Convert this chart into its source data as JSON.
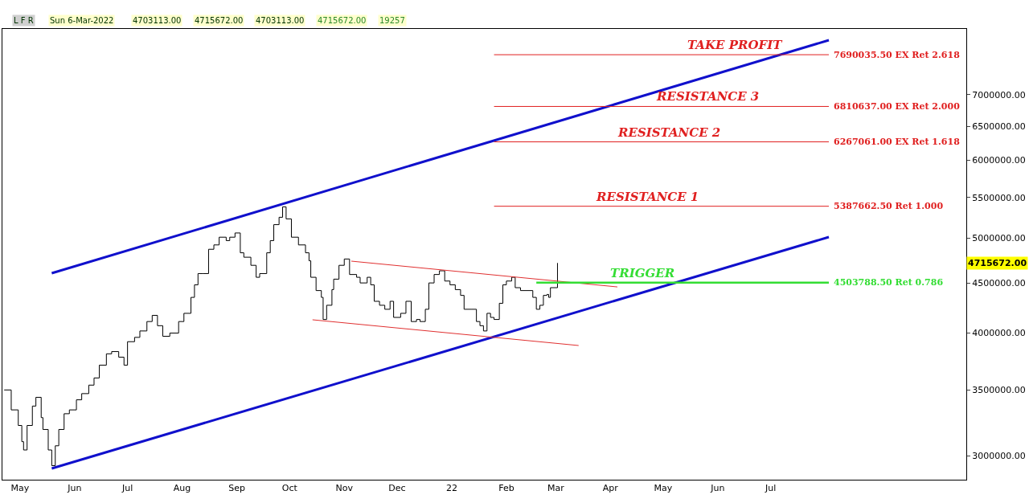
{
  "chart_data": {
    "type": "line",
    "log": "y",
    "legend": false,
    "marker": "none",
    "xlim": [
      "2021-04-25",
      "2022-10-24"
    ],
    "xticks": [
      {
        "value": "2021-05-05",
        "label": "May"
      },
      {
        "value": "2021-06-05",
        "label": "Jun"
      },
      {
        "value": "2021-07-05",
        "label": "Jul"
      },
      {
        "value": "2021-08-05",
        "label": "Aug"
      },
      {
        "value": "2021-09-05",
        "label": "Sep"
      },
      {
        "value": "2021-10-05",
        "label": "Oct"
      },
      {
        "value": "2021-11-05",
        "label": "Nov"
      },
      {
        "value": "2021-12-05",
        "label": "Dec"
      },
      {
        "value": "2022-01-05",
        "label": "22"
      },
      {
        "value": "2022-02-05",
        "label": "Feb"
      },
      {
        "value": "2022-03-05",
        "label": "Mar"
      },
      {
        "value": "2022-04-05",
        "label": "Apr"
      },
      {
        "value": "2022-05-05",
        "label": "May"
      },
      {
        "value": "2022-06-05",
        "label": "Jun"
      },
      {
        "value": "2022-07-05",
        "label": "Jul"
      }
    ],
    "ylim": [
      2835000,
      8170000
    ],
    "yticks": [
      {
        "value": 3000000,
        "label": "3000000.00"
      },
      {
        "value": 3500000,
        "label": "3500000.00"
      },
      {
        "value": 4000000,
        "label": "4000000.00"
      },
      {
        "value": 4500000,
        "label": "4500000.00"
      },
      {
        "value": 5000000,
        "label": "5000000.00"
      },
      {
        "value": 5500000,
        "label": "5500000.00"
      },
      {
        "value": 6000000,
        "label": "6000000.00"
      },
      {
        "value": 6500000,
        "label": "6500000.00"
      },
      {
        "value": 7000000,
        "label": "7000000.00"
      }
    ],
    "annotations": [
      "L F R",
      "Sun 6-Mar-2022",
      "4703113.00",
      "4715672.00",
      "4703113.00",
      "4715672.00",
      "19257",
      "4715672.00",
      {
        "text": "TAKE PROFIT",
        "x": "2022-06-15",
        "y": 7690035.5
      },
      {
        "text": "RESISTANCE 3",
        "x": "2022-05-30",
        "y": 6810637
      },
      {
        "text": "RESISTANCE 2",
        "x": "2022-05-08",
        "y": 6267061
      },
      {
        "text": "RESISTANCE 1",
        "x": "2022-04-26",
        "y": 5387662.5
      },
      {
        "text": "TRIGGER",
        "x": "2022-04-23",
        "y": 4503788.5
      }
    ],
    "series": [
      {
        "type": "step",
        "color": "#000000",
        "x": [
          "2021-04-26",
          "2021-04-30",
          "2021-05-04",
          "2021-05-06",
          "2021-05-07",
          "2021-05-09",
          "2021-05-12",
          "2021-05-14",
          "2021-05-17",
          "2021-05-18",
          "2021-05-21",
          "2021-05-23",
          "2021-05-25",
          "2021-05-27",
          "2021-05-30",
          "2021-06-02",
          "2021-06-06",
          "2021-06-09",
          "2021-06-13",
          "2021-06-16",
          "2021-06-19",
          "2021-06-23",
          "2021-06-26",
          "2021-06-30",
          "2021-07-03",
          "2021-07-05",
          "2021-07-09",
          "2021-07-12",
          "2021-07-16",
          "2021-07-19",
          "2021-07-22",
          "2021-07-25",
          "2021-07-29",
          "2021-08-03",
          "2021-08-06",
          "2021-08-10",
          "2021-08-12",
          "2021-08-14",
          "2021-08-17",
          "2021-08-20",
          "2021-08-23",
          "2021-08-26",
          "2021-08-30",
          "2021-09-01",
          "2021-09-04",
          "2021-09-07",
          "2021-09-09",
          "2021-09-13",
          "2021-09-16",
          "2021-09-18",
          "2021-09-22",
          "2021-09-24",
          "2021-09-26",
          "2021-09-29",
          "2021-10-01",
          "2021-10-03",
          "2021-10-06",
          "2021-10-10",
          "2021-10-14",
          "2021-10-16",
          "2021-10-17",
          "2021-10-20",
          "2021-10-23",
          "2021-10-24",
          "2021-10-26",
          "2021-10-29",
          "2021-10-30",
          "2021-11-02",
          "2021-11-05",
          "2021-11-08",
          "2021-11-12",
          "2021-11-14",
          "2021-11-18",
          "2021-11-20",
          "2021-11-22",
          "2021-11-25",
          "2021-11-28",
          "2021-12-01",
          "2021-12-03",
          "2021-12-07",
          "2021-12-10",
          "2021-12-13",
          "2021-12-16",
          "2021-12-18",
          "2021-12-21",
          "2021-12-23",
          "2021-12-26",
          "2021-12-29",
          "2022-01-01",
          "2022-01-04",
          "2022-01-07",
          "2022-01-10",
          "2022-01-12",
          "2022-01-16",
          "2022-01-19",
          "2022-01-21",
          "2022-01-23",
          "2022-01-25",
          "2022-01-27",
          "2022-01-29",
          "2022-02-01",
          "2022-02-03",
          "2022-02-05",
          "2022-02-08",
          "2022-02-10",
          "2022-02-13",
          "2022-02-16",
          "2022-02-20",
          "2022-02-22",
          "2022-02-24",
          "2022-02-26",
          "2022-02-28",
          "2022-03-01",
          "2022-03-02",
          "2022-03-06"
        ],
        "values": [
          3500000,
          3340000,
          3220000,
          3100000,
          3040000,
          3220000,
          3370000,
          3440000,
          3280000,
          3190000,
          3040000,
          2930000,
          3070000,
          3190000,
          3310000,
          3340000,
          3420000,
          3470000,
          3540000,
          3600000,
          3710000,
          3810000,
          3830000,
          3780000,
          3710000,
          3920000,
          3960000,
          4020000,
          4110000,
          4170000,
          4070000,
          3970000,
          4000000,
          4110000,
          4190000,
          4350000,
          4480000,
          4600000,
          4600000,
          4870000,
          4920000,
          5010000,
          4970000,
          5010000,
          5060000,
          4830000,
          4780000,
          4690000,
          4560000,
          4600000,
          4830000,
          4970000,
          5160000,
          5250000,
          5380000,
          5230000,
          5010000,
          4920000,
          4830000,
          4740000,
          4560000,
          4420000,
          4350000,
          4130000,
          4270000,
          4430000,
          4540000,
          4690000,
          4760000,
          4590000,
          4560000,
          4500000,
          4560000,
          4480000,
          4310000,
          4270000,
          4230000,
          4310000,
          4150000,
          4190000,
          4310000,
          4110000,
          4130000,
          4110000,
          4230000,
          4500000,
          4590000,
          4630000,
          4520000,
          4480000,
          4430000,
          4370000,
          4230000,
          4230000,
          4110000,
          4070000,
          4020000,
          4190000,
          4150000,
          4130000,
          4290000,
          4480000,
          4520000,
          4560000,
          4450000,
          4420000,
          4420000,
          4350000,
          4230000,
          4270000,
          4370000,
          4380000,
          4350000,
          4450000,
          4715672
        ]
      },
      {
        "color": "#1010cc",
        "x": [
          "2021-05-23",
          "2022-08-07"
        ],
        "values": [
          4604000,
          7958000
        ]
      },
      {
        "color": "#1010cc",
        "x": [
          "2021-05-23",
          "2022-08-07"
        ],
        "values": [
          2911000,
          5012000
        ]
      },
      {
        "color": "#e03030",
        "x": [
          "2021-11-09",
          "2022-04-09"
        ],
        "values": [
          4736000,
          4458000
        ]
      },
      {
        "color": "#e03030",
        "x": [
          "2021-10-18",
          "2022-03-18"
        ],
        "values": [
          4127000,
          3885000
        ]
      },
      {
        "name": "7690035.50 EX Ret 2.618",
        "color": "#e02020",
        "x": [
          "2022-01-29",
          "2022-08-07"
        ],
        "values": [
          7690035.5,
          7690035.5
        ]
      },
      {
        "name": "6810637.00 EX Ret 2.000",
        "color": "#e02020",
        "x": [
          "2022-01-29",
          "2022-08-07"
        ],
        "values": [
          6810637,
          6810637
        ]
      },
      {
        "name": "6267061.00 EX Ret 1.618",
        "color": "#e02020",
        "x": [
          "2022-01-29",
          "2022-08-07"
        ],
        "values": [
          6267061,
          6267061
        ]
      },
      {
        "name": "5387662.50 Ret 1.000",
        "color": "#e02020",
        "x": [
          "2022-01-29",
          "2022-08-07"
        ],
        "values": [
          5387662.5,
          5387662.5
        ]
      },
      {
        "name": "4503788.50 Ret 0.786",
        "color": "#33dd33",
        "x": [
          "2022-02-22",
          "2022-08-07"
        ],
        "values": [
          4503788.5,
          4503788.5
        ]
      }
    ]
  }
}
